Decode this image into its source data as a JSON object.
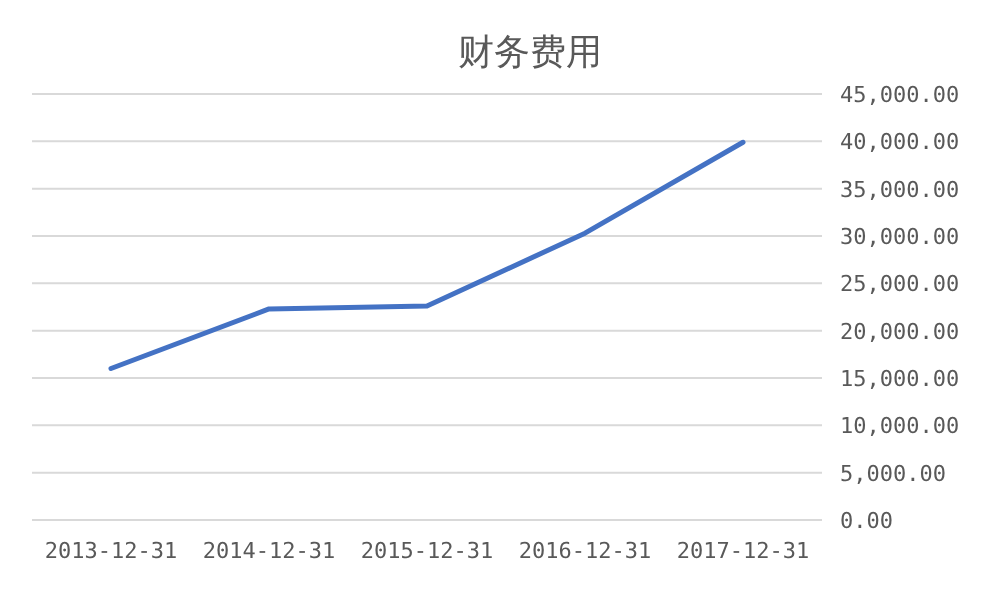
{
  "chart_data": {
    "type": "line",
    "title": "财务费用",
    "categories": [
      "2013-12-31",
      "2014-12-31",
      "2015-12-31",
      "2016-12-31",
      "2017-12-31"
    ],
    "series": [
      {
        "color": "#4472c4",
        "values": [
          16000,
          22300,
          22600,
          30300,
          39900
        ]
      }
    ],
    "ylim": [
      0,
      45000
    ],
    "yticks": [
      {
        "value": 0,
        "label": "0.00"
      },
      {
        "value": 5000,
        "label": "5,000.00"
      },
      {
        "value": 10000,
        "label": "10,000.00"
      },
      {
        "value": 15000,
        "label": "15,000.00"
      },
      {
        "value": 20000,
        "label": "20,000.00"
      },
      {
        "value": 25000,
        "label": "25,000.00"
      },
      {
        "value": 30000,
        "label": "30,000.00"
      },
      {
        "value": 35000,
        "label": "35,000.00"
      },
      {
        "value": 40000,
        "label": "40,000.00"
      },
      {
        "value": 45000,
        "label": "45,000.00"
      }
    ],
    "grid": "y",
    "marker": "none",
    "line_style": "solid"
  }
}
